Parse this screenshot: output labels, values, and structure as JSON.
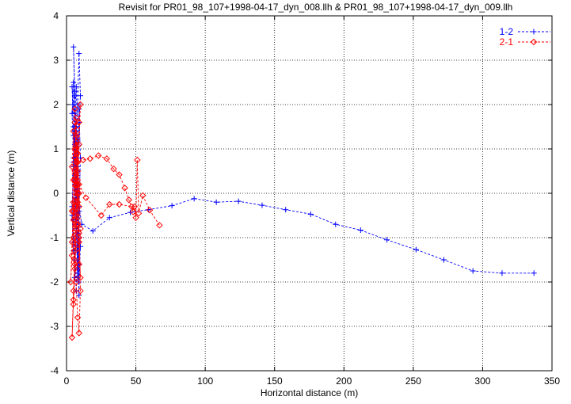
{
  "chart_data": {
    "type": "line",
    "title": "Revisit for PR01_98_107+1998-04-17_dyn_008.llh & PR01_98_107+1998-04-17_dyn_009.llh",
    "xlabel": "Horizontal distance (m)",
    "ylabel": "Vertical distance (m)",
    "xlim": [
      0,
      350
    ],
    "ylim": [
      -4,
      4
    ],
    "xticks": [
      0,
      50,
      100,
      150,
      200,
      250,
      300,
      350
    ],
    "yticks": [
      -4,
      -3,
      -2,
      -1,
      0,
      1,
      2,
      3,
      4
    ],
    "grid": true,
    "legend_position": "top-right",
    "series": [
      {
        "name": "1-2",
        "color": "#0000ff",
        "marker": "plus",
        "points": [
          [
            337,
            -1.8
          ],
          [
            314,
            -1.8
          ],
          [
            293,
            -1.75
          ],
          [
            272,
            -1.5
          ],
          [
            252,
            -1.27
          ],
          [
            231,
            -1.05
          ],
          [
            212,
            -0.83
          ],
          [
            194,
            -0.7
          ],
          [
            176,
            -0.47
          ],
          [
            158,
            -0.37
          ],
          [
            141,
            -0.27
          ],
          [
            124,
            -0.18
          ],
          [
            108,
            -0.2
          ],
          [
            92,
            -0.12
          ],
          [
            76,
            -0.28
          ],
          [
            59,
            -0.37
          ],
          [
            46,
            -0.43
          ],
          [
            31,
            -0.55
          ],
          [
            19,
            -0.85
          ],
          [
            11,
            -0.7
          ],
          [
            9,
            -0.3
          ],
          [
            8,
            0.5
          ],
          [
            7,
            1.5
          ],
          [
            6,
            2.3
          ],
          [
            5,
            3.3
          ],
          [
            6,
            2.2
          ],
          [
            7,
            1.0
          ],
          [
            6,
            0.2
          ],
          [
            5,
            -0.6
          ],
          [
            6,
            -1.5
          ],
          [
            7,
            -2.2
          ],
          [
            8,
            -1.3
          ],
          [
            6,
            -0.4
          ],
          [
            5,
            0.8
          ],
          [
            4,
            1.8
          ],
          [
            5,
            2.5
          ],
          [
            6,
            1.5
          ],
          [
            7,
            0.6
          ],
          [
            8,
            -0.5
          ],
          [
            9,
            -1.6
          ],
          [
            9,
            -2.3
          ],
          [
            8,
            -1.2
          ],
          [
            7,
            0.1
          ],
          [
            6,
            1.1
          ],
          [
            5,
            2.0
          ],
          [
            4,
            2.4
          ],
          [
            5,
            1.3
          ],
          [
            6,
            0.3
          ],
          [
            7,
            -0.8
          ],
          [
            8,
            -1.9
          ],
          [
            9,
            -1.0
          ],
          [
            8,
            0.4
          ],
          [
            9,
            1.6
          ],
          [
            10,
            2.2
          ],
          [
            9,
            3.15
          ],
          [
            8,
            2.0
          ],
          [
            7,
            0.9
          ],
          [
            6,
            -0.2
          ],
          [
            5,
            -1.3
          ],
          [
            4,
            -0.5
          ],
          [
            5,
            0.7
          ],
          [
            6,
            1.8
          ],
          [
            7,
            2.4
          ],
          [
            8,
            1.2
          ],
          [
            9,
            0.0
          ],
          [
            10,
            -1.2
          ],
          [
            9,
            -2.0
          ],
          [
            8,
            -0.9
          ],
          [
            7,
            0.3
          ],
          [
            6,
            1.4
          ],
          [
            5,
            0.6
          ],
          [
            4,
            -0.3
          ],
          [
            5,
            -1.1
          ],
          [
            6,
            -1.9
          ],
          [
            7,
            -0.7
          ],
          [
            8,
            0.6
          ],
          [
            9,
            1.9
          ],
          [
            10,
            0.8
          ],
          [
            9,
            -0.4
          ],
          [
            8,
            -1.7
          ],
          [
            7,
            -0.6
          ],
          [
            6,
            0.7
          ],
          [
            5,
            1.5
          ],
          [
            6,
            0.4
          ],
          [
            7,
            -0.1
          ],
          [
            8,
            0.2
          ]
        ]
      },
      {
        "name": "2-1",
        "color": "#ff0000",
        "marker": "diamond",
        "points": [
          [
            67,
            -0.72
          ],
          [
            60,
            -0.38
          ],
          [
            55,
            -0.05
          ],
          [
            52,
            -0.45
          ],
          [
            51,
            0.75
          ],
          [
            50,
            -0.55
          ],
          [
            49,
            -0.3
          ],
          [
            47,
            -0.3
          ],
          [
            38,
            -0.25
          ],
          [
            31,
            -0.25
          ],
          [
            25,
            -0.5
          ],
          [
            14,
            -0.1
          ],
          [
            9,
            0.2
          ],
          [
            9,
            -0.3
          ],
          [
            8,
            0.5
          ],
          [
            7,
            1.3
          ],
          [
            6,
            1.9
          ],
          [
            7,
            1.0
          ],
          [
            8,
            0.1
          ],
          [
            7,
            -0.8
          ],
          [
            6,
            -1.6
          ],
          [
            5,
            -2.4
          ],
          [
            4,
            -3.25
          ],
          [
            5,
            -2.2
          ],
          [
            6,
            -1.3
          ],
          [
            7,
            -0.3
          ],
          [
            8,
            0.7
          ],
          [
            9,
            1.6
          ],
          [
            10,
            2.0
          ],
          [
            9,
            1.1
          ],
          [
            8,
            0.2
          ],
          [
            7,
            -0.7
          ],
          [
            6,
            -1.7
          ],
          [
            5,
            -2.5
          ],
          [
            6,
            -1.5
          ],
          [
            7,
            -0.5
          ],
          [
            6,
            0.5
          ],
          [
            5,
            1.4
          ],
          [
            4,
            0.6
          ],
          [
            5,
            -0.4
          ],
          [
            6,
            -1.2
          ],
          [
            7,
            -2.0
          ],
          [
            8,
            -2.8
          ],
          [
            9,
            -3.15
          ],
          [
            10,
            -2.2
          ],
          [
            9,
            -1.0
          ],
          [
            8,
            0.0
          ],
          [
            7,
            0.9
          ],
          [
            6,
            1.6
          ],
          [
            7,
            0.7
          ],
          [
            8,
            -0.2
          ],
          [
            9,
            -1.1
          ],
          [
            10,
            -1.9
          ],
          [
            9,
            -0.9
          ],
          [
            8,
            0.3
          ],
          [
            7,
            1.1
          ],
          [
            6,
            0.3
          ],
          [
            5,
            -0.6
          ],
          [
            4,
            -1.4
          ],
          [
            3,
            -2.0
          ],
          [
            4,
            -1.1
          ],
          [
            5,
            -0.2
          ],
          [
            6,
            0.8
          ],
          [
            7,
            1.7
          ],
          [
            8,
            0.9
          ],
          [
            9,
            0.0
          ],
          [
            10,
            -0.8
          ],
          [
            9,
            -1.6
          ],
          [
            8,
            -0.7
          ],
          [
            7,
            0.2
          ],
          [
            6,
            1.0
          ],
          [
            5,
            0.3
          ],
          [
            4,
            -0.4
          ],
          [
            5,
            -1.0
          ],
          [
            6,
            -0.3
          ],
          [
            7,
            0.4
          ],
          [
            8,
            0.7
          ],
          [
            12,
            0.75
          ],
          [
            17,
            0.78
          ],
          [
            23,
            0.85
          ],
          [
            29,
            0.78
          ],
          [
            34,
            0.55
          ],
          [
            38,
            0.42
          ],
          [
            42,
            0.12
          ],
          [
            45,
            -0.15
          ],
          [
            48,
            -0.42
          ]
        ]
      }
    ]
  }
}
